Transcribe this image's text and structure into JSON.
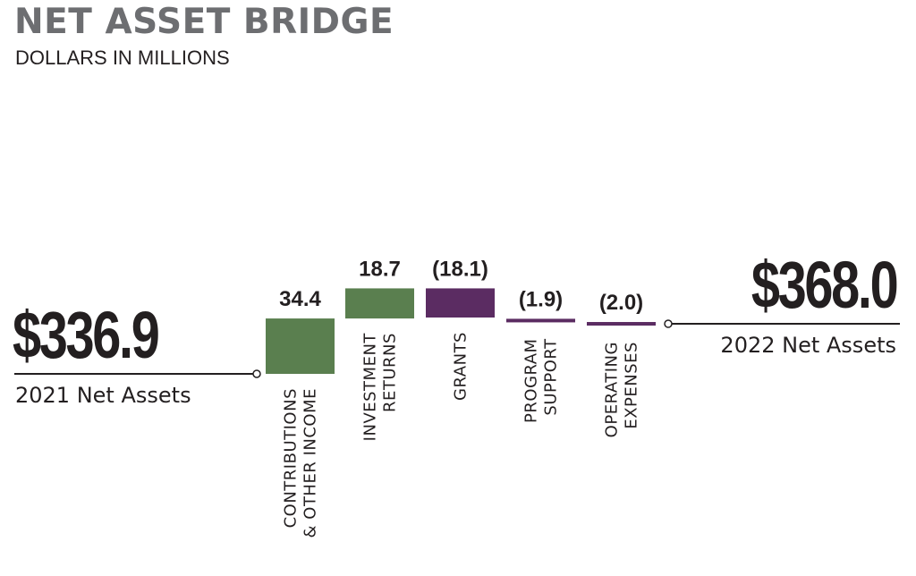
{
  "title": "NET ASSET BRIDGE",
  "subtitle": "DOLLARS IN MILLIONS",
  "start": {
    "value": "$336.9",
    "label": "2021 Net Assets"
  },
  "end": {
    "value": "$368.0",
    "label": "2022 Net Assets"
  },
  "colors": {
    "positive": "#5a7f4f",
    "negative": "#5b2c62",
    "line": "#231f20"
  },
  "chart_data": {
    "type": "bar",
    "subtype": "waterfall",
    "title": "NET ASSET BRIDGE",
    "subtitle": "DOLLARS IN MILLIONS",
    "start": 336.9,
    "end": 368.0,
    "categories": [
      [
        "CONTRIBUTIONS",
        "& OTHER INCOME"
      ],
      [
        "INVESTMENT",
        "RETURNS"
      ],
      [
        "GRANTS"
      ],
      [
        "PROGRAM",
        "SUPPORT"
      ],
      [
        "OPERATING",
        "EXPENSES"
      ]
    ],
    "values": [
      34.4,
      18.7,
      -18.1,
      -1.9,
      -2.0
    ],
    "value_labels": [
      "34.4",
      "18.7",
      "(18.1)",
      "(1.9)",
      "(2.0)"
    ]
  }
}
